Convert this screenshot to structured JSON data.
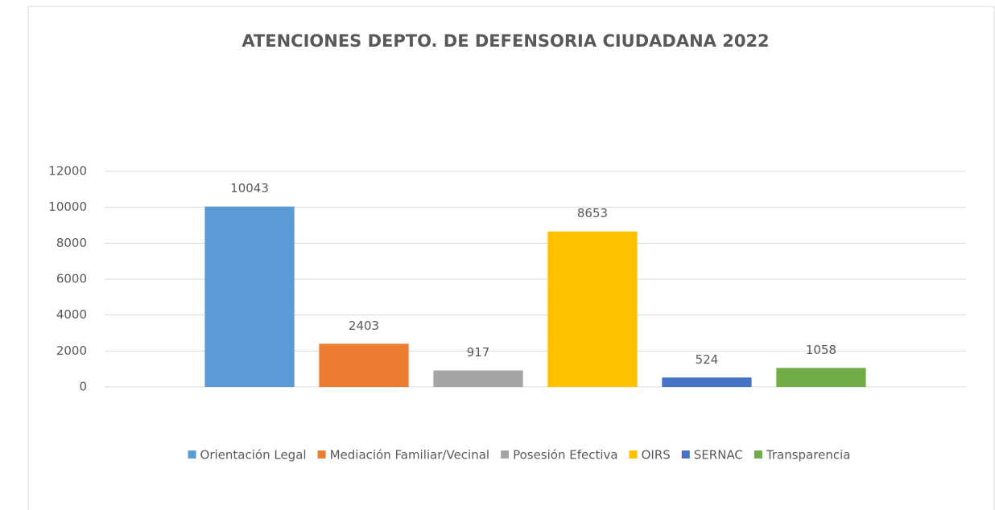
{
  "chart_data": {
    "type": "bar",
    "title": "ATENCIONES DEPTO. DE DEFENSORIA CIUDADANA 2022",
    "categories": [
      null
    ],
    "series": [
      {
        "name": "Orientación Legal",
        "color": "#5b9bd5",
        "values": [
          10043
        ]
      },
      {
        "name": "Mediación Familiar/Vecinal",
        "color": "#ed7d31",
        "values": [
          2403
        ]
      },
      {
        "name": "Posesión Efectiva",
        "color": "#a5a5a5",
        "values": [
          917
        ]
      },
      {
        "name": "OIRS",
        "color": "#ffc000",
        "values": [
          8653
        ]
      },
      {
        "name": "SERNAC",
        "color": "#4472c4",
        "values": [
          524
        ]
      },
      {
        "name": "Transparencia",
        "color": "#70ad47",
        "values": [
          1058
        ]
      }
    ],
    "ylim": [
      0,
      12000
    ],
    "yticks": [
      0,
      2000,
      4000,
      6000,
      8000,
      10000,
      12000
    ],
    "grid": true,
    "legend": "bottom"
  }
}
